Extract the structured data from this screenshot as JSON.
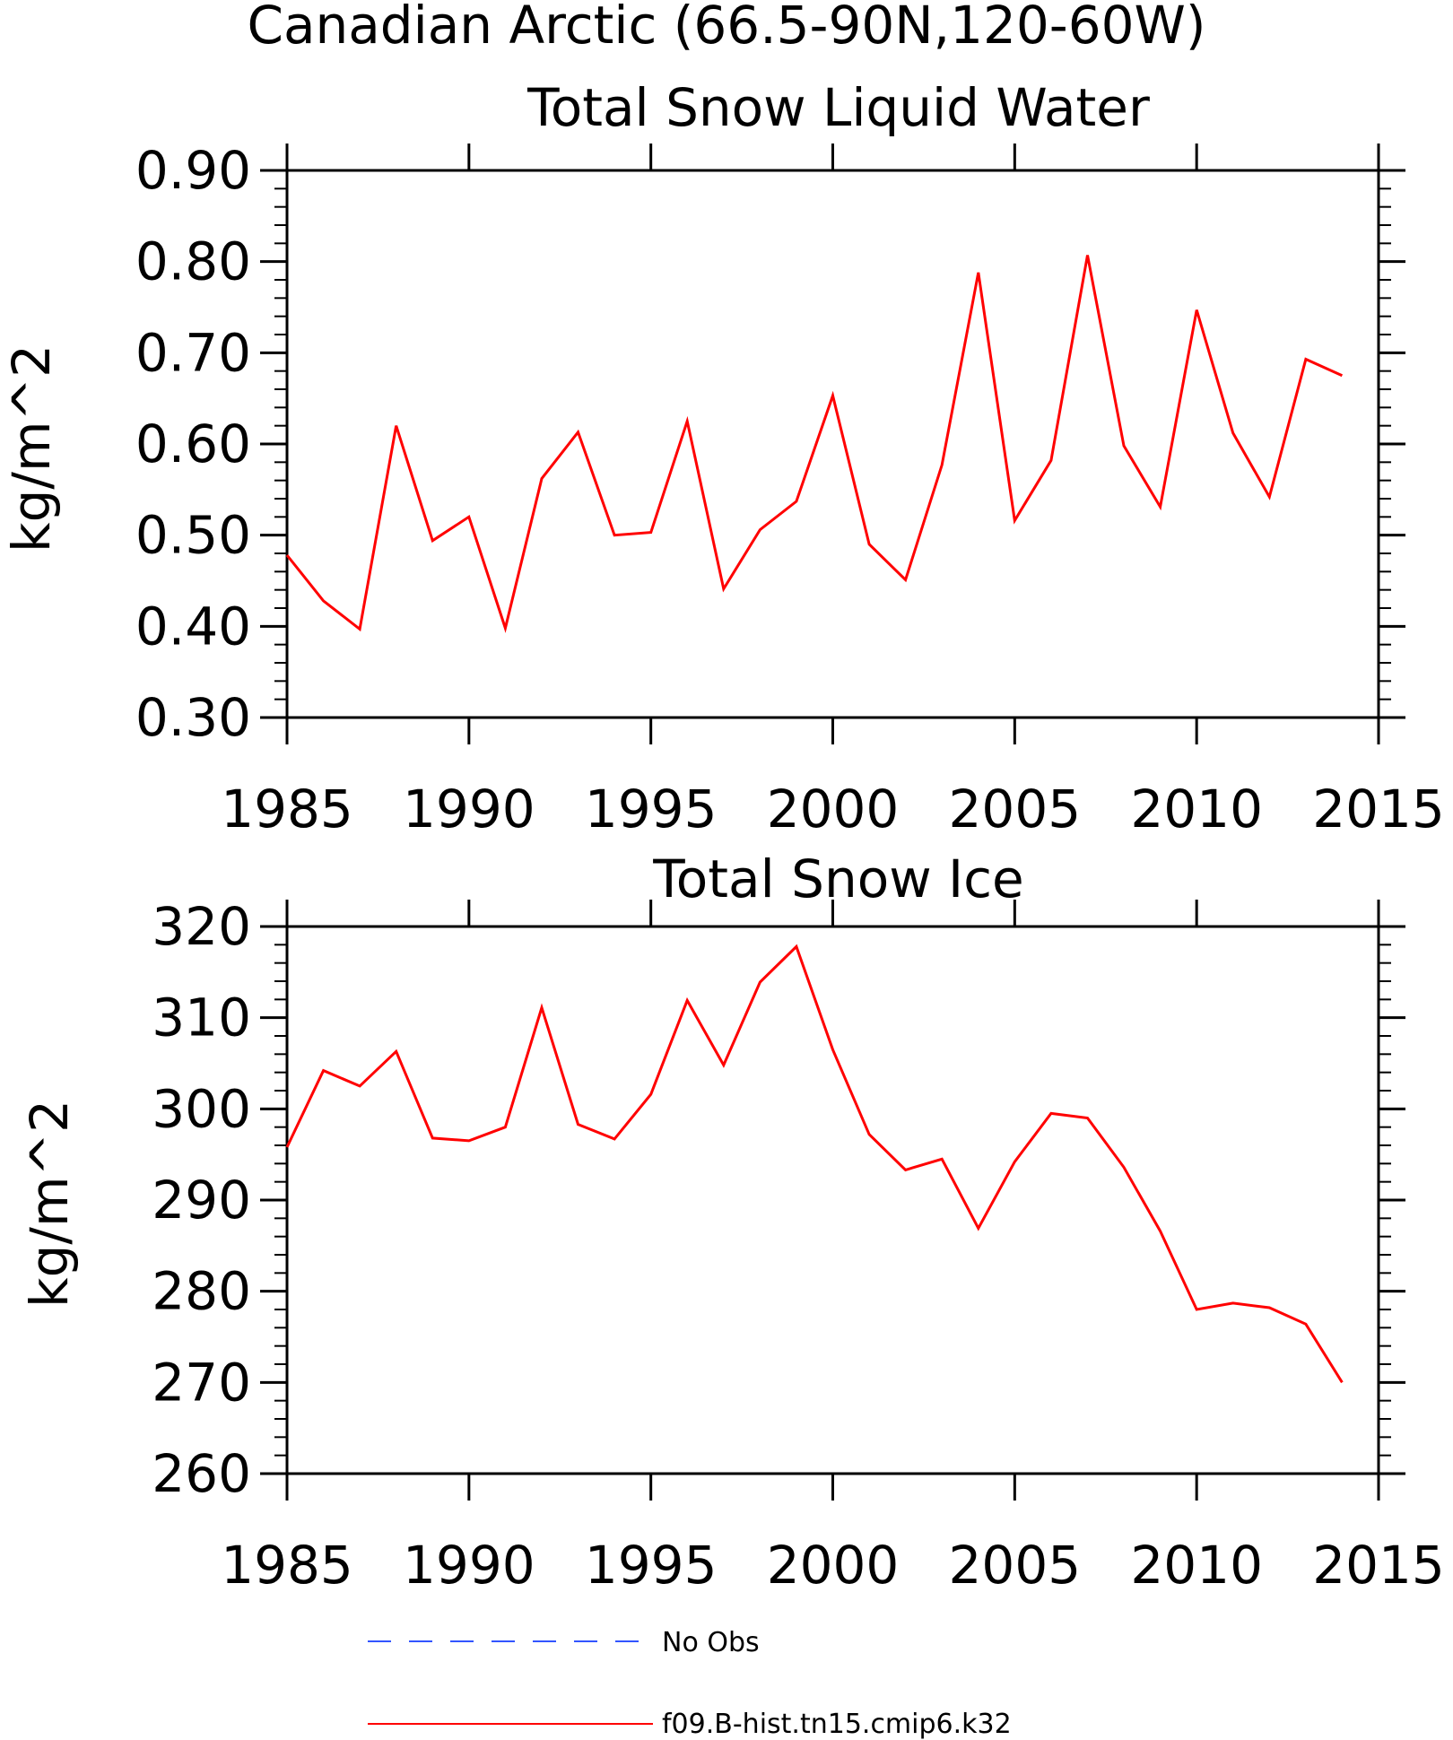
{
  "figure": {
    "title": "Canadian Arctic (66.5-90N,120-60W)"
  },
  "colors": {
    "model": "#ff0000",
    "obs": "#3355ff",
    "axes": "#000000",
    "background": "#ffffff"
  },
  "chart_data": [
    {
      "type": "line",
      "title": "Total Snow Liquid Water",
      "xlabel": "",
      "ylabel": "kg/m^2",
      "xlim": [
        1985,
        2015
      ],
      "ylim": [
        0.3,
        0.9
      ],
      "xticks": [
        1985,
        1990,
        1995,
        2000,
        2005,
        2010,
        2015
      ],
      "xtick_labels": [
        "1985",
        "1990",
        "1995",
        "2000",
        "2005",
        "2010",
        "2015"
      ],
      "yticks": [
        0.3,
        0.4,
        0.5,
        0.6,
        0.7,
        0.8,
        0.9
      ],
      "ytick_labels": [
        "0.30",
        "0.40",
        "0.50",
        "0.60",
        "0.70",
        "0.80",
        "0.90"
      ],
      "grid": false,
      "x": [
        1985,
        1986,
        1987,
        1988,
        1989,
        1990,
        1991,
        1992,
        1993,
        1994,
        1995,
        1996,
        1997,
        1998,
        1999,
        2000,
        2001,
        2002,
        2003,
        2004,
        2005,
        2006,
        2007,
        2008,
        2009,
        2010,
        2011,
        2012,
        2013,
        2014
      ],
      "series": [
        {
          "name": "f09.B-hist.tn15.cmip6.k32",
          "color": "#ff0000",
          "values": [
            0.478,
            0.428,
            0.397,
            0.62,
            0.494,
            0.52,
            0.398,
            0.562,
            0.613,
            0.5,
            0.503,
            0.625,
            0.441,
            0.506,
            0.537,
            0.653,
            0.49,
            0.451,
            0.577,
            0.788,
            0.516,
            0.582,
            0.807,
            0.598,
            0.531,
            0.747,
            0.612,
            0.542,
            0.693,
            0.675
          ]
        }
      ]
    },
    {
      "type": "line",
      "title": "Total Snow Ice",
      "xlabel": "",
      "ylabel": "kg/m^2",
      "xlim": [
        1985,
        2015
      ],
      "ylim": [
        260,
        320
      ],
      "xticks": [
        1985,
        1990,
        1995,
        2000,
        2005,
        2010,
        2015
      ],
      "xtick_labels": [
        "1985",
        "1990",
        "1995",
        "2000",
        "2005",
        "2010",
        "2015"
      ],
      "yticks": [
        260,
        270,
        280,
        290,
        300,
        310,
        320
      ],
      "ytick_labels": [
        "260",
        "270",
        "280",
        "290",
        "300",
        "310",
        "320"
      ],
      "grid": false,
      "x": [
        1985,
        1986,
        1987,
        1988,
        1989,
        1990,
        1991,
        1992,
        1993,
        1994,
        1995,
        1996,
        1997,
        1998,
        1999,
        2000,
        2001,
        2002,
        2003,
        2004,
        2005,
        2006,
        2007,
        2008,
        2009,
        2010,
        2011,
        2012,
        2013,
        2014
      ],
      "series": [
        {
          "name": "f09.B-hist.tn15.cmip6.k32",
          "color": "#ff0000",
          "values": [
            295.8,
            304.2,
            302.5,
            306.3,
            296.8,
            296.5,
            298.0,
            311.1,
            298.3,
            296.7,
            301.6,
            311.9,
            304.8,
            313.9,
            317.8,
            306.5,
            297.2,
            293.3,
            294.5,
            286.9,
            294.2,
            299.5,
            299.0,
            293.6,
            286.6,
            278.0,
            278.7,
            278.2,
            276.4,
            270.0
          ]
        }
      ]
    }
  ],
  "legend": {
    "placement": "bottom",
    "entries": [
      {
        "label": "No Obs",
        "color": "#3355ff",
        "style": "dashed"
      },
      {
        "label": "f09.B-hist.tn15.cmip6.k32",
        "color": "#ff0000",
        "style": "solid"
      }
    ]
  }
}
